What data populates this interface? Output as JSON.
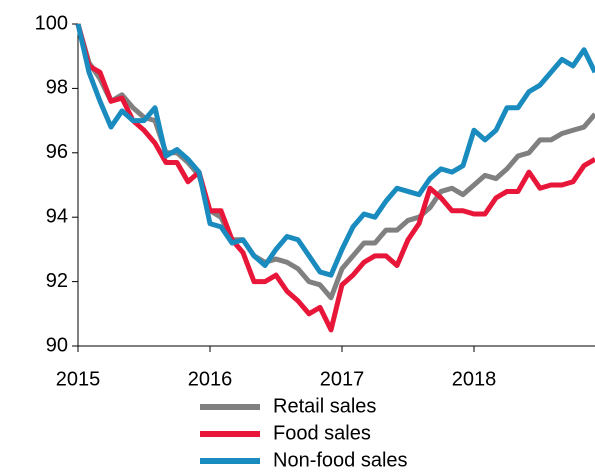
{
  "chart_data": {
    "type": "line",
    "categories": [
      "2015",
      null,
      null,
      null,
      null,
      null,
      null,
      null,
      null,
      null,
      null,
      null,
      "2016",
      null,
      null,
      null,
      null,
      null,
      null,
      null,
      null,
      null,
      null,
      null,
      "2017",
      null,
      null,
      null,
      null,
      null,
      null,
      null,
      null,
      null,
      null,
      null,
      "2018",
      null,
      null,
      null,
      null,
      null,
      null,
      null,
      null,
      null,
      null,
      null
    ],
    "series": [
      {
        "name": "Retail sales",
        "color": "#808080",
        "values": [
          100,
          98.8,
          98.3,
          97.6,
          97.8,
          97.4,
          97.1,
          97.0,
          96.0,
          96.0,
          95.7,
          95.3,
          94.2,
          94.0,
          93.3,
          93.3,
          92.8,
          92.6,
          92.7,
          92.6,
          92.4,
          92.0,
          91.9,
          91.5,
          92.4,
          92.8,
          93.2,
          93.2,
          93.6,
          93.6,
          93.9,
          94.0,
          94.3,
          94.8,
          94.9,
          94.7,
          95.0,
          95.3,
          95.2,
          95.5,
          95.9,
          96.0,
          96.4,
          96.4,
          96.6,
          96.7,
          96.8,
          97.2
        ]
      },
      {
        "name": "Food sales",
        "color": "#e8173a",
        "values": [
          100,
          98.7,
          98.5,
          97.6,
          97.7,
          97.0,
          96.7,
          96.3,
          95.7,
          95.7,
          95.1,
          95.4,
          94.2,
          94.2,
          93.3,
          92.9,
          92.0,
          92.0,
          92.2,
          91.7,
          91.4,
          91.0,
          91.2,
          90.5,
          91.9,
          92.2,
          92.6,
          92.8,
          92.8,
          92.5,
          93.3,
          93.8,
          94.9,
          94.6,
          94.2,
          94.2,
          94.1,
          94.1,
          94.6,
          94.8,
          94.8,
          95.4,
          94.9,
          95.0,
          95.0,
          95.1,
          95.6,
          95.8
        ]
      },
      {
        "name": "Non-food sales",
        "color": "#1a8bbf",
        "values": [
          100,
          98.5,
          97.6,
          96.8,
          97.3,
          97.0,
          97.0,
          97.4,
          95.9,
          96.1,
          95.8,
          95.4,
          93.8,
          93.7,
          93.2,
          93.3,
          92.8,
          92.5,
          93.0,
          93.4,
          93.3,
          92.8,
          92.3,
          92.2,
          93.0,
          93.7,
          94.1,
          94.0,
          94.5,
          94.9,
          94.8,
          94.7,
          95.2,
          95.5,
          95.4,
          95.6,
          96.7,
          96.4,
          96.7,
          97.4,
          97.4,
          97.9,
          98.1,
          98.5,
          98.9,
          98.7,
          99.2,
          98.5
        ]
      }
    ],
    "ylim": [
      90,
      100
    ],
    "yticks": [
      90,
      92,
      94,
      96,
      98,
      100
    ],
    "grid": false,
    "legend": "bottom"
  }
}
